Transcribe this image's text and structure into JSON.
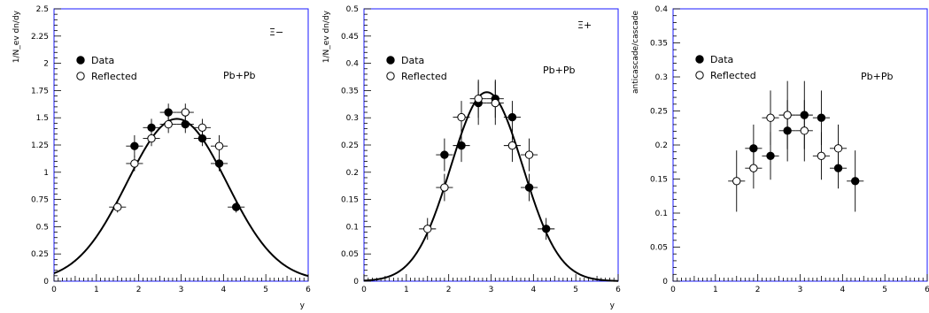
{
  "chart_data": [
    {
      "type": "scatter",
      "ylabel": "1/N_ev dn/dy",
      "xlabel": "y",
      "xlim": [
        0,
        6
      ],
      "ylim": [
        0,
        2.5
      ],
      "xticks": [
        "0",
        "1",
        "2",
        "3",
        "4",
        "5",
        "6"
      ],
      "yticks": [
        "0",
        "0.25",
        "0.5",
        "0.75",
        "1",
        "1.25",
        "1.5",
        "1.75",
        "2",
        "2.25",
        "2.5"
      ],
      "particle": "Ξ−",
      "system": "Pb+Pb",
      "legend": [
        "Data",
        "Reflected"
      ],
      "fit": {
        "shape": "gaussian",
        "amplitude": 1.49,
        "mean": 2.9,
        "sigma": 1.18
      },
      "series": [
        {
          "name": "Data",
          "marker": "filled-circle",
          "x": [
            1.9,
            2.3,
            2.7,
            3.1,
            3.5,
            3.9,
            4.3
          ],
          "y": [
            1.24,
            1.41,
            1.55,
            1.44,
            1.31,
            1.08,
            0.68
          ],
          "yerr": [
            0.1,
            0.08,
            0.08,
            0.08,
            0.07,
            0.07,
            0.05
          ],
          "xerr": 0.2
        },
        {
          "name": "Reflected",
          "marker": "open-circle",
          "x": [
            1.5,
            1.9,
            2.3,
            2.7,
            3.1,
            3.5,
            3.9
          ],
          "y": [
            0.68,
            1.08,
            1.31,
            1.44,
            1.55,
            1.41,
            1.24
          ],
          "yerr": [
            0.05,
            0.07,
            0.07,
            0.08,
            0.08,
            0.08,
            0.1
          ],
          "xerr": 0.2
        }
      ]
    },
    {
      "type": "scatter",
      "ylabel": "1/N_ev dn/dy",
      "xlabel": "y",
      "xlim": [
        0,
        6
      ],
      "ylim": [
        0,
        0.5
      ],
      "xticks": [
        "0",
        "1",
        "2",
        "3",
        "4",
        "5",
        "6"
      ],
      "yticks": [
        "0",
        "0.05",
        "0.1",
        "0.15",
        "0.2",
        "0.25",
        "0.3",
        "0.35",
        "0.4",
        "0.45",
        "0.5"
      ],
      "particle": "Ξ+",
      "system": "Pb+Pb",
      "legend": [
        "Data",
        "Reflected"
      ],
      "fit": {
        "shape": "gaussian",
        "amplitude": 0.347,
        "mean": 2.9,
        "sigma": 0.85
      },
      "series": [
        {
          "name": "Data",
          "marker": "filled-circle",
          "x": [
            1.9,
            2.3,
            2.7,
            3.1,
            3.5,
            3.9,
            4.3
          ],
          "y": [
            0.232,
            0.249,
            0.327,
            0.335,
            0.301,
            0.172,
            0.096
          ],
          "yerr": [
            0.03,
            0.03,
            0.04,
            0.035,
            0.03,
            0.025,
            0.02
          ],
          "xerr": 0.2
        },
        {
          "name": "Reflected",
          "marker": "open-circle",
          "x": [
            1.5,
            1.9,
            2.3,
            2.7,
            3.1,
            3.5,
            3.9
          ],
          "y": [
            0.096,
            0.172,
            0.301,
            0.335,
            0.327,
            0.249,
            0.232
          ],
          "yerr": [
            0.02,
            0.025,
            0.03,
            0.035,
            0.04,
            0.03,
            0.03
          ],
          "xerr": 0.2
        }
      ]
    },
    {
      "type": "scatter",
      "ylabel": "anticascade/cascade",
      "xlabel": "",
      "xlim": [
        0,
        6
      ],
      "ylim": [
        0,
        0.4
      ],
      "xticks": [
        "0",
        "1",
        "2",
        "3",
        "4",
        "5",
        "6"
      ],
      "yticks": [
        "0",
        "0.05",
        "0.1",
        "0.15",
        "0.2",
        "0.25",
        "0.3",
        "0.35",
        "0.4"
      ],
      "particle": "",
      "system": "Pb+Pb",
      "legend": [
        "Data",
        "Reflected"
      ],
      "series": [
        {
          "name": "Data",
          "marker": "filled-circle",
          "x": [
            1.9,
            2.3,
            2.7,
            3.1,
            3.5,
            3.9,
            4.3
          ],
          "y": [
            0.195,
            0.184,
            0.221,
            0.244,
            0.24,
            0.166,
            0.147
          ],
          "yerr": [
            0.035,
            0.035,
            0.045,
            0.05,
            0.04,
            0.03,
            0.045
          ],
          "xerr": 0.2
        },
        {
          "name": "Reflected",
          "marker": "open-circle",
          "x": [
            1.5,
            1.9,
            2.3,
            2.7,
            3.1,
            3.5,
            3.9
          ],
          "y": [
            0.147,
            0.166,
            0.24,
            0.244,
            0.221,
            0.184,
            0.195
          ],
          "yerr": [
            0.045,
            0.03,
            0.04,
            0.05,
            0.045,
            0.035,
            0.035
          ],
          "xerr": 0.2
        }
      ]
    }
  ]
}
